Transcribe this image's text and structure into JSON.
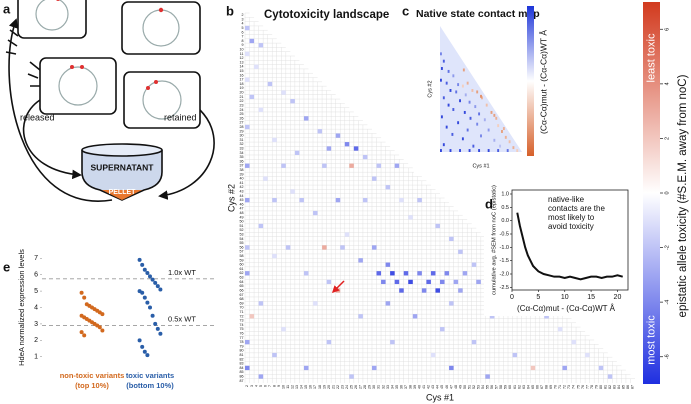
{
  "panel_labels": [
    "a",
    "b",
    "c",
    "d",
    "e"
  ],
  "diagram": {
    "released": "released",
    "retained": "retained",
    "supernatant": "SUPERNATANT",
    "pellet": "PELLET"
  },
  "chart_data": [
    {
      "type": "heatmap",
      "title": "Cytotoxicity landscape",
      "x_label": "Cys #1",
      "y_label": "Cys #2",
      "xlim": [
        2,
        87
      ],
      "ylim": [
        2,
        87
      ],
      "xticks": [
        2,
        3,
        4,
        5,
        6,
        7,
        8,
        9,
        10,
        11,
        12,
        13,
        14,
        15,
        16,
        17,
        18,
        19,
        20,
        21,
        22,
        23,
        24,
        25,
        26,
        27,
        28,
        29,
        30,
        31,
        32,
        33,
        34,
        35,
        36,
        37,
        38,
        39,
        40,
        41,
        42,
        43,
        44,
        45,
        46,
        47,
        48,
        49,
        50,
        51,
        52,
        53,
        54,
        55,
        56,
        57,
        58,
        59,
        60,
        61,
        62,
        63,
        64,
        65,
        66,
        67,
        68,
        69,
        70,
        71,
        72,
        73,
        74,
        75,
        76,
        77,
        78,
        79,
        80,
        81,
        82,
        83,
        84,
        85,
        86,
        87
      ],
      "yticks": [
        2,
        3,
        4,
        5,
        6,
        7,
        8,
        9,
        10,
        11,
        12,
        13,
        14,
        15,
        16,
        17,
        18,
        19,
        20,
        21,
        22,
        23,
        24,
        25,
        26,
        27,
        28,
        29,
        30,
        31,
        32,
        33,
        34,
        35,
        36,
        37,
        38,
        39,
        40,
        41,
        42,
        43,
        44,
        45,
        46,
        47,
        48,
        49,
        50,
        51,
        52,
        53,
        54,
        55,
        56,
        57,
        58,
        59,
        60,
        61,
        62,
        63,
        64,
        65,
        66,
        67,
        68,
        69,
        70,
        71,
        72,
        73,
        74,
        75,
        76,
        77,
        78,
        79,
        80,
        81,
        82,
        83,
        84,
        85,
        86,
        87
      ],
      "cells": [
        [
          2,
          5,
          -2
        ],
        [
          3,
          8,
          -3
        ],
        [
          2,
          11,
          -1
        ],
        [
          5,
          9,
          -2
        ],
        [
          4,
          14,
          -1
        ],
        [
          2,
          17,
          -1
        ],
        [
          7,
          18,
          -2
        ],
        [
          3,
          21,
          -2
        ],
        [
          10,
          20,
          -1
        ],
        [
          12,
          22,
          -2
        ],
        [
          5,
          24,
          -1
        ],
        [
          15,
          26,
          -3
        ],
        [
          2,
          28,
          -2
        ],
        [
          18,
          29,
          -2
        ],
        [
          22,
          30,
          -3
        ],
        [
          8,
          31,
          -1
        ],
        [
          24,
          32,
          -4
        ],
        [
          26,
          33,
          -5
        ],
        [
          20,
          33,
          -3
        ],
        [
          13,
          34,
          -2
        ],
        [
          28,
          35,
          -2
        ],
        [
          2,
          37,
          -3
        ],
        [
          10,
          37,
          -2
        ],
        [
          19,
          37,
          -2
        ],
        [
          25,
          37,
          3
        ],
        [
          31,
          37,
          -2
        ],
        [
          35,
          37,
          -3
        ],
        [
          6,
          40,
          -1
        ],
        [
          30,
          40,
          -2
        ],
        [
          33,
          42,
          -2
        ],
        [
          12,
          43,
          -1
        ],
        [
          2,
          45,
          -3
        ],
        [
          8,
          45,
          -2
        ],
        [
          14,
          45,
          -2
        ],
        [
          22,
          45,
          -3
        ],
        [
          28,
          45,
          -2
        ],
        [
          36,
          45,
          -1
        ],
        [
          40,
          45,
          -2
        ],
        [
          17,
          48,
          -2
        ],
        [
          38,
          49,
          -1
        ],
        [
          5,
          51,
          -2
        ],
        [
          44,
          51,
          -2
        ],
        [
          24,
          53,
          -1
        ],
        [
          47,
          54,
          -2
        ],
        [
          2,
          56,
          -2
        ],
        [
          11,
          56,
          -2
        ],
        [
          19,
          56,
          3
        ],
        [
          23,
          56,
          -2
        ],
        [
          30,
          56,
          -3
        ],
        [
          49,
          57,
          -2
        ],
        [
          8,
          58,
          -1
        ],
        [
          27,
          59,
          -3
        ],
        [
          33,
          60,
          -4
        ],
        [
          52,
          60,
          -2
        ],
        [
          2,
          62,
          -3
        ],
        [
          15,
          62,
          -2
        ],
        [
          31,
          62,
          -5
        ],
        [
          34,
          62,
          -6
        ],
        [
          37,
          62,
          -5
        ],
        [
          40,
          62,
          -4
        ],
        [
          43,
          62,
          -5
        ],
        [
          46,
          62,
          -4
        ],
        [
          50,
          62,
          -3
        ],
        [
          55,
          62,
          -2
        ],
        [
          58,
          62,
          -2
        ],
        [
          20,
          64,
          -2
        ],
        [
          32,
          64,
          -4
        ],
        [
          35,
          64,
          -5
        ],
        [
          38,
          64,
          -6
        ],
        [
          42,
          64,
          -5
        ],
        [
          45,
          64,
          -4
        ],
        [
          48,
          64,
          -3
        ],
        [
          53,
          64,
          -3
        ],
        [
          22,
          66,
          3
        ],
        [
          36,
          66,
          -5
        ],
        [
          41,
          66,
          -4
        ],
        [
          44,
          66,
          -6
        ],
        [
          49,
          66,
          -3
        ],
        [
          57,
          66,
          -2
        ],
        [
          60,
          66,
          -2
        ],
        [
          5,
          69,
          -2
        ],
        [
          17,
          69,
          -1
        ],
        [
          33,
          69,
          -3
        ],
        [
          47,
          69,
          -2
        ],
        [
          64,
          69,
          -1
        ],
        [
          3,
          72,
          2
        ],
        [
          27,
          72,
          -2
        ],
        [
          39,
          72,
          -3
        ],
        [
          56,
          72,
          -2
        ],
        [
          68,
          72,
          -2
        ],
        [
          10,
          75,
          -1
        ],
        [
          45,
          75,
          -2
        ],
        [
          71,
          75,
          -1
        ],
        [
          2,
          78,
          -3
        ],
        [
          20,
          78,
          -2
        ],
        [
          34,
          78,
          -2
        ],
        [
          52,
          78,
          -2
        ],
        [
          74,
          78,
          -1
        ],
        [
          8,
          81,
          -2
        ],
        [
          43,
          81,
          -1
        ],
        [
          61,
          81,
          -2
        ],
        [
          77,
          81,
          -1
        ],
        [
          2,
          84,
          -4
        ],
        [
          15,
          84,
          -3
        ],
        [
          30,
          84,
          -3
        ],
        [
          47,
          84,
          -4
        ],
        [
          65,
          84,
          2
        ],
        [
          72,
          84,
          -3
        ],
        [
          80,
          84,
          -2
        ],
        [
          5,
          86,
          -3
        ],
        [
          25,
          86,
          -2
        ],
        [
          55,
          86,
          -3
        ],
        [
          82,
          86,
          -2
        ]
      ],
      "clim": [
        -7,
        7
      ],
      "colors": {
        "low": "#1f2fe0",
        "mid": "#ffffff",
        "high": "#d23a1e"
      },
      "colorbar": {
        "label": "epistatic allele toxicity (#S.E.M. away from noC)",
        "top_label": "least toxic",
        "bottom_label": "most toxic",
        "ticks": [
          6,
          4,
          2,
          0,
          -2,
          -4,
          -6
        ]
      }
    },
    {
      "type": "heatmap",
      "title": "Native state contact map",
      "x_label": "Cys #1",
      "y_label": "Cys #2",
      "xlim": [
        2,
        87
      ],
      "ylim": [
        2,
        87
      ],
      "cells": [
        [
          2,
          20,
          6
        ],
        [
          5,
          25,
          8
        ],
        [
          3,
          30,
          9
        ],
        [
          10,
          32,
          7
        ],
        [
          15,
          35,
          5
        ],
        [
          2,
          38,
          9
        ],
        [
          8,
          40,
          8
        ],
        [
          20,
          41,
          6
        ],
        [
          25,
          42,
          -3
        ],
        [
          30,
          40,
          -5
        ],
        [
          12,
          45,
          9
        ],
        [
          18,
          46,
          7
        ],
        [
          28,
          48,
          4
        ],
        [
          35,
          45,
          -4
        ],
        [
          40,
          46,
          -6
        ],
        [
          5,
          50,
          8
        ],
        [
          22,
          52,
          9
        ],
        [
          32,
          53,
          6
        ],
        [
          45,
          50,
          -5
        ],
        [
          10,
          55,
          9
        ],
        [
          38,
          56,
          5
        ],
        [
          50,
          55,
          -4
        ],
        [
          15,
          58,
          8
        ],
        [
          27,
          60,
          9
        ],
        [
          42,
          61,
          7
        ],
        [
          55,
          60,
          -6
        ],
        [
          3,
          63,
          9
        ],
        [
          33,
          64,
          8
        ],
        [
          48,
          65,
          4
        ],
        [
          60,
          64,
          -5
        ],
        [
          20,
          67,
          9
        ],
        [
          40,
          68,
          6
        ],
        [
          62,
          69,
          -3
        ],
        [
          8,
          70,
          9
        ],
        [
          30,
          72,
          7
        ],
        [
          52,
          72,
          5
        ],
        [
          66,
          73,
          -6
        ],
        [
          14,
          75,
          8
        ],
        [
          44,
          76,
          6
        ],
        [
          70,
          77,
          -5
        ],
        [
          25,
          78,
          9
        ],
        [
          58,
          79,
          4
        ],
        [
          74,
          80,
          -4
        ],
        [
          5,
          82,
          9
        ],
        [
          36,
          83,
          8
        ],
        [
          64,
          83,
          3
        ],
        [
          78,
          84,
          -5
        ],
        [
          2,
          86,
          9
        ],
        [
          12,
          86,
          9
        ],
        [
          22,
          86,
          9
        ],
        [
          32,
          86,
          9
        ],
        [
          42,
          86,
          9
        ],
        [
          52,
          86,
          9
        ],
        [
          62,
          86,
          8
        ],
        [
          72,
          86,
          7
        ],
        [
          82,
          86,
          -3
        ],
        [
          44,
          49,
          -7
        ],
        [
          58,
          62,
          -6
        ],
        [
          26,
          31,
          -6
        ],
        [
          68,
          71,
          -5
        ]
      ],
      "clim": [
        -10,
        10
      ],
      "colors": {
        "low": "#d6602a",
        "mid": "#ffffff",
        "high": "#1d35d8"
      },
      "colorbar": {
        "label": "(Cα-Cα)mut - (Cα-Cα)WT Å"
      }
    },
    {
      "type": "line",
      "x_label": "(Cα-Cα)mut - (Cα-Cα)WT Å",
      "y_label": "cumulative avg. #SEM from noC (epistatic)",
      "annotation_lines": [
        "native-like",
        "contacts are the",
        "most likely to",
        "avoid toxicity"
      ],
      "x": [
        1,
        1.5,
        2,
        2.5,
        3,
        3.5,
        4,
        4.5,
        5,
        6,
        7,
        8,
        9,
        10,
        11,
        12,
        13,
        14,
        15,
        16,
        17,
        18,
        19,
        20,
        21
      ],
      "values": [
        0.3,
        -0.2,
        -0.6,
        -1.0,
        -1.3,
        -1.5,
        -1.7,
        -1.8,
        -1.9,
        -2.0,
        -2.05,
        -2.1,
        -2.1,
        -2.15,
        -2.1,
        -2.15,
        -2.2,
        -2.15,
        -2.1,
        -2.1,
        -2.15,
        -2.1,
        -2.1,
        -2.05,
        -2.1
      ],
      "color": "#111111",
      "xlim": [
        0,
        22
      ],
      "xticks": [
        0,
        5,
        10,
        15,
        20
      ],
      "ylim": [
        -2.6,
        1.15
      ],
      "yticks": [
        {
          "value": 1,
          "label": "1.0"
        },
        0.5,
        {
          "value": 0,
          "label": "0.0"
        },
        -0.5,
        {
          "value": -1,
          "label": "-1.0"
        },
        -1.5,
        {
          "value": -2,
          "label": "-2.0"
        },
        -2.5
      ]
    },
    {
      "type": "strip",
      "y_label": "HdeA normalized expression levels",
      "categories": [
        "non-toxic variants",
        "toxic variants"
      ],
      "subcategories": [
        "(top 10%)",
        "(bottom 10%)"
      ],
      "series": [
        {
          "color": "#d2691e",
          "values": [
            4.9,
            4.6,
            4.2,
            4.1,
            4.0,
            3.9,
            3.8,
            3.7,
            3.6,
            3.5,
            3.4,
            3.3,
            3.2,
            3.1,
            3.0,
            2.9,
            2.8,
            2.6,
            2.5,
            2.3
          ]
        },
        {
          "color": "#2a5ea8",
          "values": [
            6.9,
            6.6,
            6.3,
            6.1,
            5.9,
            5.7,
            5.5,
            5.3,
            5.1,
            5.0,
            4.9,
            4.6,
            4.3,
            4.0,
            3.5,
            3.0,
            2.7,
            2.4,
            2.0,
            1.6,
            1.3,
            1.1
          ]
        }
      ],
      "ref_lines": [
        {
          "value": 5.75,
          "label": "1.0x WT"
        },
        {
          "value": 2.9,
          "label": "0.5x WT"
        }
      ],
      "ylim": [
        0.8,
        7.2
      ],
      "yticks": [
        1,
        2,
        3,
        4,
        5,
        6,
        7
      ]
    }
  ]
}
